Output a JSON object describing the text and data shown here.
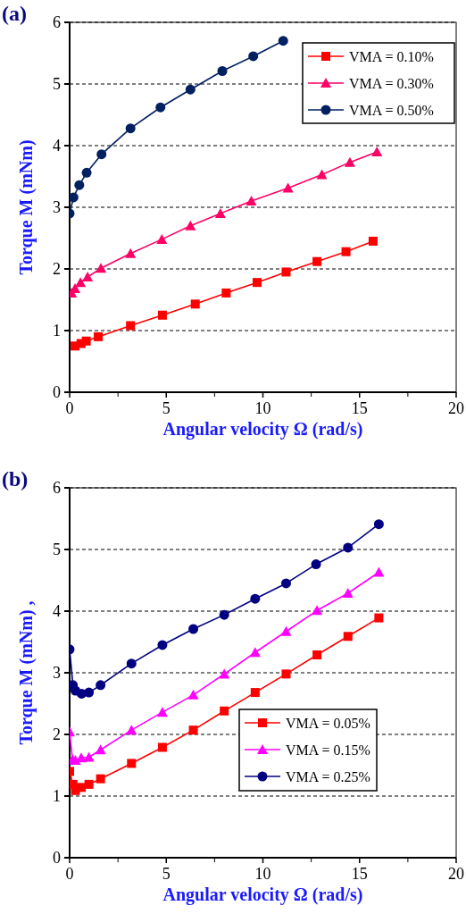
{
  "chart_data": [
    {
      "type": "line",
      "title": "(a)",
      "xlabel": "Angular velocity Ω (rad/s)",
      "ylabel": "Torque M (mNm)",
      "xlim": [
        0,
        20
      ],
      "ylim": [
        0,
        6
      ],
      "xticks": [
        0,
        5,
        10,
        15,
        20
      ],
      "yticks": [
        0,
        1,
        2,
        3,
        4,
        5,
        6
      ],
      "grid": "y",
      "legend": "top right",
      "series": [
        {
          "name": "VMA = 0.10%",
          "color": "#ff0000",
          "marker": "square",
          "x": [
            0.28,
            0.59,
            0.86,
            1.48,
            3.15,
            4.8,
            6.5,
            8.1,
            9.7,
            11.2,
            12.8,
            14.3,
            15.7
          ],
          "values": [
            0.75,
            0.79,
            0.83,
            0.9,
            1.08,
            1.25,
            1.43,
            1.61,
            1.78,
            1.95,
            2.12,
            2.28,
            2.45
          ]
        },
        {
          "name": "VMA = 0.30%",
          "color": "#ff0066",
          "marker": "triangle",
          "x": [
            0.1,
            0.28,
            0.56,
            0.93,
            1.62,
            3.15,
            4.77,
            6.25,
            7.8,
            9.4,
            11.3,
            13.05,
            14.5,
            15.9
          ],
          "values": [
            1.61,
            1.68,
            1.78,
            1.87,
            2.01,
            2.25,
            2.48,
            2.7,
            2.9,
            3.1,
            3.31,
            3.53,
            3.73,
            3.9
          ]
        },
        {
          "name": "VMA = 0.50%",
          "color": "#002060",
          "marker": "circle",
          "x": [
            0,
            0.2,
            0.5,
            0.88,
            1.65,
            3.15,
            4.7,
            6.25,
            7.9,
            9.5,
            11.05
          ],
          "values": [
            2.9,
            3.16,
            3.36,
            3.56,
            3.86,
            4.28,
            4.62,
            4.91,
            5.21,
            5.45,
            5.7
          ]
        }
      ]
    },
    {
      "type": "line",
      "title": "(b)",
      "xlabel": "Angular velocity Ω (rad/s)",
      "ylabel": "Torque M (mNm) ,",
      "xlim": [
        0,
        20
      ],
      "ylim": [
        0,
        6
      ],
      "xticks": [
        0,
        5,
        10,
        15,
        20
      ],
      "yticks": [
        0,
        1,
        2,
        3,
        4,
        5,
        6
      ],
      "grid": "y",
      "legend": "bottom right",
      "series": [
        {
          "name": "VMA = 0.05%",
          "color": "#ff0000",
          "marker": "square",
          "x": [
            0,
            0.17,
            0.3,
            0.6,
            1.0,
            1.6,
            3.2,
            4.8,
            6.4,
            8.0,
            9.6,
            11.2,
            12.8,
            14.4,
            16
          ],
          "values": [
            1.4,
            1.19,
            1.09,
            1.14,
            1.19,
            1.28,
            1.53,
            1.79,
            2.07,
            2.38,
            2.68,
            2.98,
            3.29,
            3.59,
            3.89
          ]
        },
        {
          "name": "VMA = 0.15%",
          "color": "#ff00ff",
          "marker": "triangle",
          "x": [
            0,
            0.15,
            0.3,
            0.6,
            1.0,
            1.6,
            3.2,
            4.8,
            6.4,
            8.0,
            9.6,
            11.2,
            12.8,
            14.4,
            16
          ],
          "values": [
            2.04,
            1.59,
            1.58,
            1.62,
            1.63,
            1.75,
            2.07,
            2.36,
            2.64,
            2.98,
            3.33,
            3.67,
            4.01,
            4.29,
            4.63
          ]
        },
        {
          "name": "VMA = 0.25%",
          "color": "#000080",
          "marker": "circle",
          "x": [
            0,
            0.17,
            0.3,
            0.62,
            1.0,
            1.6,
            3.2,
            4.8,
            6.4,
            8.0,
            9.6,
            11.2,
            12.75,
            14.4,
            16
          ],
          "values": [
            3.38,
            2.8,
            2.71,
            2.66,
            2.68,
            2.8,
            3.15,
            3.45,
            3.71,
            3.94,
            4.2,
            4.45,
            4.76,
            5.03,
            5.41
          ]
        }
      ]
    }
  ]
}
